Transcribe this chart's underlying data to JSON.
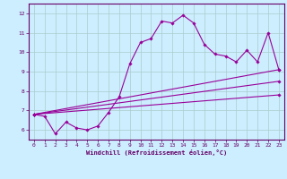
{
  "xlabel": "Windchill (Refroidissement éolien,°C)",
  "ylabel": "",
  "bg_color": "#cceeff",
  "line_color": "#990099",
  "grid_color": "#aacccc",
  "axis_color": "#660066",
  "xlim": [
    -0.5,
    23.5
  ],
  "ylim": [
    5.5,
    12.5
  ],
  "xticks": [
    0,
    1,
    2,
    3,
    4,
    5,
    6,
    7,
    8,
    9,
    10,
    11,
    12,
    13,
    14,
    15,
    16,
    17,
    18,
    19,
    20,
    21,
    22,
    23
  ],
  "yticks": [
    6,
    7,
    8,
    9,
    10,
    11,
    12
  ],
  "series": [
    {
      "x": [
        0,
        1,
        2,
        3,
        4,
        5,
        6,
        7,
        8,
        9,
        10,
        11,
        12,
        13,
        14,
        15,
        16,
        17,
        18,
        19,
        20,
        21,
        22,
        23
      ],
      "y": [
        6.8,
        6.7,
        5.8,
        6.4,
        6.1,
        6.0,
        6.2,
        6.9,
        7.7,
        9.4,
        10.5,
        10.7,
        11.6,
        11.5,
        11.9,
        11.5,
        10.4,
        9.9,
        9.8,
        9.5,
        10.1,
        9.5,
        11.0,
        9.1
      ]
    },
    {
      "x": [
        0,
        23
      ],
      "y": [
        6.8,
        9.1
      ]
    },
    {
      "x": [
        0,
        23
      ],
      "y": [
        6.8,
        8.5
      ]
    },
    {
      "x": [
        0,
        23
      ],
      "y": [
        6.8,
        7.8
      ]
    }
  ]
}
